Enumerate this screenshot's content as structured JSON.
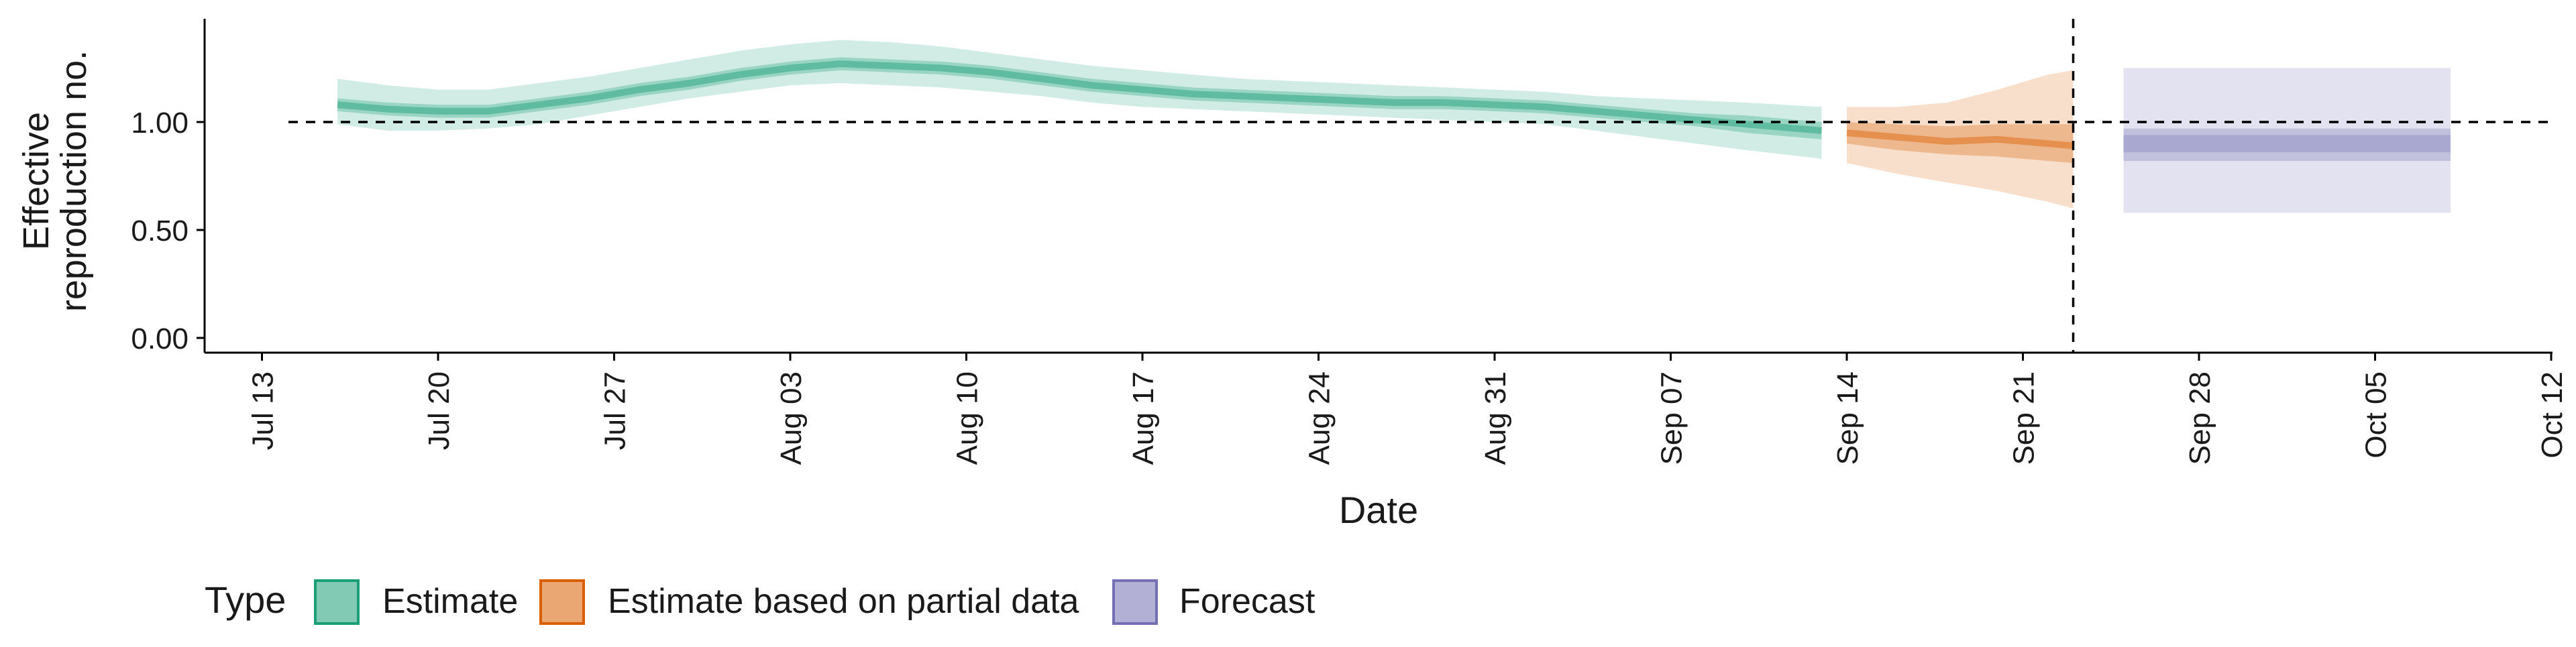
{
  "chart_data": {
    "type": "area",
    "ylabel": [
      "Effective",
      "reproduction no."
    ],
    "xlabel": "Date",
    "ylim": [
      0,
      1.45
    ],
    "xlim": [
      "2020-07-12",
      "2020-10-12"
    ],
    "y_ticks": [
      0.0,
      0.5,
      1.0
    ],
    "y_tick_labels": [
      "0.00",
      "0.50",
      "1.00"
    ],
    "x_ticks": [
      "2020-07-13",
      "2020-07-20",
      "2020-07-27",
      "2020-08-03",
      "2020-08-10",
      "2020-08-17",
      "2020-08-24",
      "2020-08-31",
      "2020-09-07",
      "2020-09-14",
      "2020-09-21",
      "2020-09-28",
      "2020-10-05",
      "2020-10-12"
    ],
    "x_tick_labels": [
      "Jul 13",
      "Jul 20",
      "Jul 27",
      "Aug 03",
      "Aug 10",
      "Aug 17",
      "Aug 24",
      "Aug 31",
      "Sep 07",
      "Sep 14",
      "Sep 21",
      "Sep 28",
      "Oct 05",
      "Oct 12"
    ],
    "reference_line_y": 1.0,
    "reference_line_x": "2020-09-23",
    "legend": {
      "title": "Type",
      "position": "bottom",
      "entries": [
        "Estimate",
        "Estimate based on partial data",
        "Forecast"
      ]
    },
    "colors": {
      "Estimate": "#1b9e77",
      "Estimate based on partial data": "#d95f02",
      "Forecast": "#7570b3"
    },
    "series": [
      {
        "name": "Estimate",
        "x": [
          "2020-07-16",
          "2020-07-18",
          "2020-07-20",
          "2020-07-22",
          "2020-07-24",
          "2020-07-26",
          "2020-07-28",
          "2020-07-30",
          "2020-08-01",
          "2020-08-03",
          "2020-08-05",
          "2020-08-07",
          "2020-08-09",
          "2020-08-11",
          "2020-08-13",
          "2020-08-15",
          "2020-08-17",
          "2020-08-19",
          "2020-08-21",
          "2020-08-23",
          "2020-08-25",
          "2020-08-27",
          "2020-08-29",
          "2020-08-31",
          "2020-09-02",
          "2020-09-04",
          "2020-09-06",
          "2020-09-08",
          "2020-09-10",
          "2020-09-13"
        ],
        "median": [
          1.08,
          1.06,
          1.05,
          1.05,
          1.08,
          1.11,
          1.15,
          1.18,
          1.22,
          1.25,
          1.27,
          1.26,
          1.25,
          1.23,
          1.2,
          1.17,
          1.15,
          1.13,
          1.12,
          1.11,
          1.1,
          1.09,
          1.09,
          1.08,
          1.07,
          1.05,
          1.03,
          1.01,
          0.99,
          0.96
        ],
        "lower_50": [
          1.05,
          1.03,
          1.02,
          1.02,
          1.05,
          1.08,
          1.12,
          1.15,
          1.19,
          1.22,
          1.24,
          1.23,
          1.22,
          1.2,
          1.17,
          1.14,
          1.12,
          1.1,
          1.09,
          1.08,
          1.07,
          1.06,
          1.06,
          1.05,
          1.04,
          1.02,
          1.0,
          0.98,
          0.95,
          0.92
        ],
        "upper_50": [
          1.11,
          1.09,
          1.08,
          1.08,
          1.11,
          1.14,
          1.18,
          1.21,
          1.25,
          1.28,
          1.3,
          1.29,
          1.28,
          1.26,
          1.23,
          1.2,
          1.18,
          1.16,
          1.15,
          1.14,
          1.13,
          1.12,
          1.12,
          1.11,
          1.1,
          1.08,
          1.06,
          1.04,
          1.03,
          1.0
        ],
        "lower_90": [
          0.99,
          0.96,
          0.96,
          0.97,
          0.99,
          1.03,
          1.07,
          1.11,
          1.14,
          1.17,
          1.18,
          1.17,
          1.16,
          1.14,
          1.12,
          1.09,
          1.07,
          1.06,
          1.05,
          1.04,
          1.03,
          1.02,
          1.01,
          1.0,
          0.99,
          0.96,
          0.93,
          0.9,
          0.87,
          0.83
        ],
        "upper_90": [
          1.2,
          1.17,
          1.15,
          1.15,
          1.18,
          1.21,
          1.25,
          1.29,
          1.33,
          1.36,
          1.38,
          1.37,
          1.35,
          1.32,
          1.29,
          1.26,
          1.24,
          1.22,
          1.2,
          1.19,
          1.18,
          1.17,
          1.16,
          1.15,
          1.14,
          1.12,
          1.11,
          1.1,
          1.09,
          1.07
        ]
      },
      {
        "name": "Estimate based on partial data",
        "x": [
          "2020-09-14",
          "2020-09-16",
          "2020-09-18",
          "2020-09-20",
          "2020-09-22",
          "2020-09-23"
        ],
        "median": [
          0.95,
          0.93,
          0.91,
          0.92,
          0.9,
          0.89
        ],
        "lower_50": [
          0.9,
          0.87,
          0.85,
          0.84,
          0.82,
          0.81
        ],
        "upper_50": [
          1.0,
          0.99,
          0.98,
          0.99,
          0.99,
          0.99
        ],
        "lower_90": [
          0.81,
          0.76,
          0.72,
          0.68,
          0.63,
          0.6
        ],
        "upper_90": [
          1.07,
          1.07,
          1.09,
          1.15,
          1.22,
          1.24
        ]
      },
      {
        "name": "Forecast",
        "x": [
          "2020-09-25",
          "2020-10-08"
        ],
        "median": [
          0.9,
          0.9
        ],
        "lower_50": [
          0.82,
          0.82
        ],
        "upper_50": [
          0.97,
          0.97
        ],
        "lower_30": [
          0.86,
          0.86
        ],
        "upper_30": [
          0.94,
          0.94
        ],
        "lower_90": [
          0.58,
          0.58
        ],
        "upper_90": [
          1.25,
          1.25
        ]
      }
    ]
  }
}
